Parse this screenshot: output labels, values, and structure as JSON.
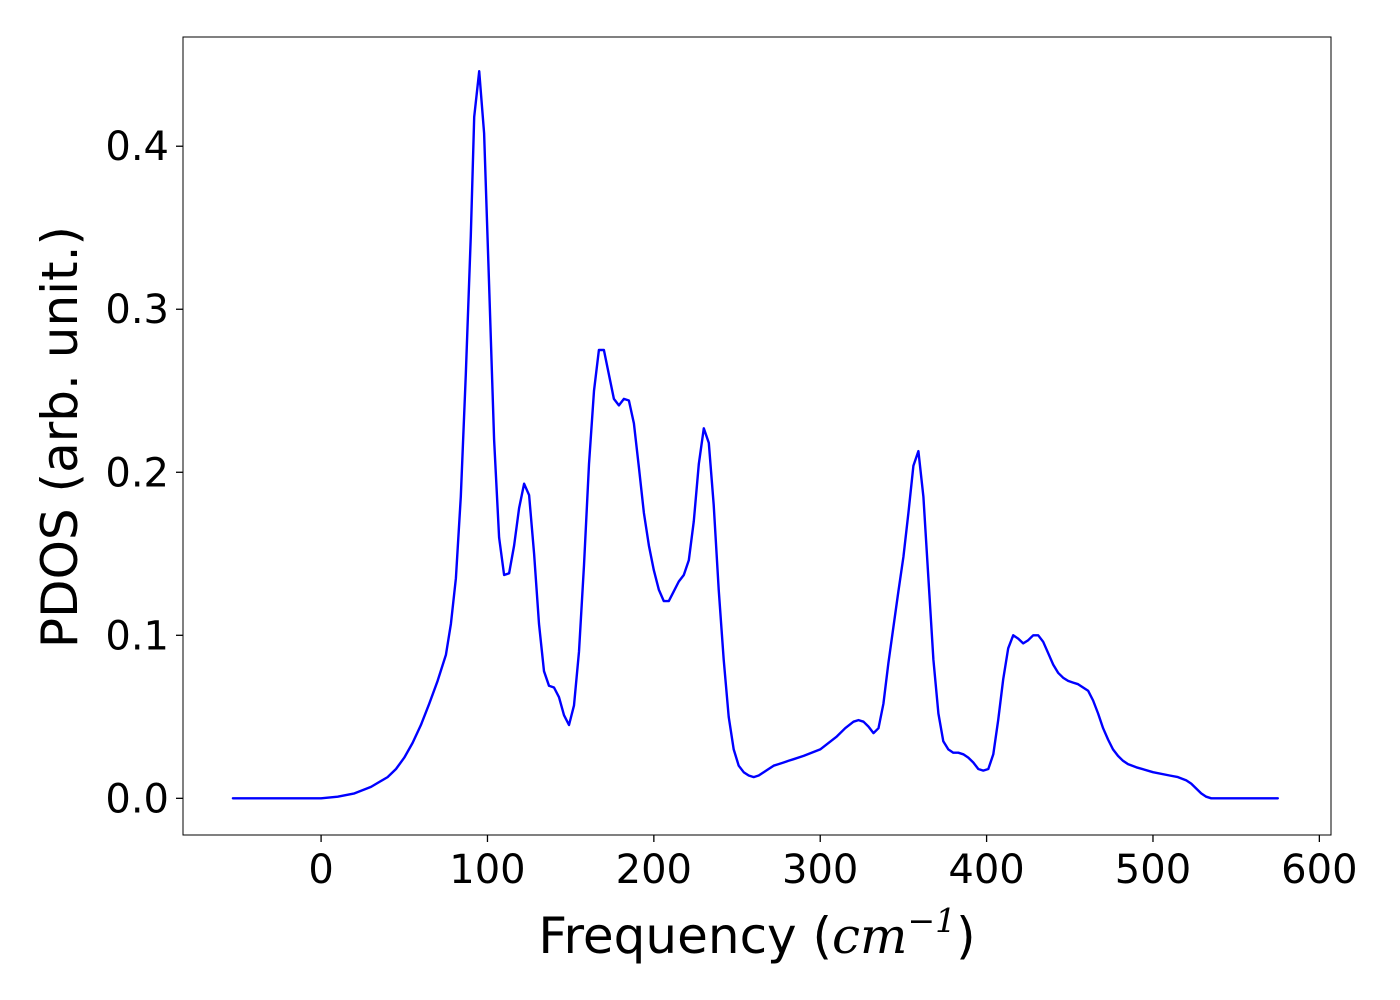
{
  "chart_data": {
    "type": "line",
    "title": "",
    "xlabel": "Frequency (",
    "xlabel_math": "cm",
    "xlabel_exp": "−1",
    "xlabel_close": ")",
    "ylabel": "PDOS (arb. unit.)",
    "xlim": [
      -83,
      607
    ],
    "ylim": [
      -0.0225,
      0.467
    ],
    "xticks": [
      0,
      100,
      200,
      300,
      400,
      500,
      600
    ],
    "xtick_labels": [
      "0",
      "100",
      "200",
      "300",
      "400",
      "500",
      "600"
    ],
    "yticks": [
      0.0,
      0.1,
      0.2,
      0.3,
      0.4
    ],
    "ytick_labels": [
      "0.0",
      "0.1",
      "0.2",
      "0.3",
      "0.4"
    ],
    "grid": false,
    "legend": "none",
    "series": [
      {
        "color": "#0000ff",
        "x": [
          -53,
          0,
          10,
          20,
          30,
          40,
          45,
          50,
          55,
          60,
          65,
          70,
          75,
          78,
          81,
          84,
          87,
          90,
          92,
          95,
          98,
          101,
          104,
          107,
          110,
          113,
          116,
          119,
          122,
          125,
          128,
          131,
          134,
          137,
          140,
          143,
          146,
          149,
          152,
          155,
          158,
          161,
          164,
          167,
          170,
          173,
          176,
          179,
          182,
          185,
          188,
          191,
          194,
          197,
          200,
          203,
          206,
          209,
          212,
          215,
          218,
          221,
          224,
          227,
          230,
          233,
          236,
          239,
          242,
          245,
          248,
          251,
          254,
          257,
          260,
          263,
          266,
          269,
          272,
          275,
          278,
          281,
          284,
          290,
          300,
          310,
          315,
          320,
          323,
          326,
          329,
          332,
          335,
          338,
          341,
          344,
          347,
          350,
          353,
          356,
          359,
          362,
          365,
          368,
          371,
          374,
          377,
          380,
          383,
          386,
          389,
          392,
          395,
          398,
          401,
          404,
          407,
          410,
          413,
          416,
          419,
          422,
          425,
          428,
          431,
          434,
          437,
          440,
          443,
          446,
          449,
          452,
          455,
          458,
          461,
          464,
          467,
          470,
          473,
          476,
          479,
          482,
          485,
          490,
          500,
          510,
          515,
          520,
          523,
          526,
          529,
          532,
          535,
          540,
          560,
          575
        ],
        "y": [
          0.0,
          0.0,
          0.001,
          0.003,
          0.007,
          0.013,
          0.018,
          0.025,
          0.034,
          0.045,
          0.058,
          0.072,
          0.088,
          0.107,
          0.135,
          0.185,
          0.26,
          0.345,
          0.418,
          0.446,
          0.408,
          0.315,
          0.22,
          0.16,
          0.137,
          0.138,
          0.155,
          0.178,
          0.193,
          0.186,
          0.15,
          0.107,
          0.078,
          0.069,
          0.068,
          0.062,
          0.051,
          0.045,
          0.057,
          0.09,
          0.143,
          0.205,
          0.25,
          0.275,
          0.275,
          0.26,
          0.245,
          0.241,
          0.245,
          0.244,
          0.23,
          0.203,
          0.175,
          0.155,
          0.14,
          0.128,
          0.121,
          0.121,
          0.127,
          0.133,
          0.137,
          0.146,
          0.17,
          0.205,
          0.227,
          0.218,
          0.18,
          0.128,
          0.085,
          0.05,
          0.03,
          0.02,
          0.016,
          0.014,
          0.013,
          0.014,
          0.016,
          0.018,
          0.02,
          0.021,
          0.022,
          0.023,
          0.024,
          0.026,
          0.03,
          0.038,
          0.043,
          0.047,
          0.048,
          0.047,
          0.044,
          0.04,
          0.043,
          0.058,
          0.083,
          0.105,
          0.127,
          0.148,
          0.175,
          0.204,
          0.213,
          0.185,
          0.135,
          0.085,
          0.052,
          0.035,
          0.03,
          0.028,
          0.028,
          0.027,
          0.025,
          0.022,
          0.018,
          0.017,
          0.018,
          0.027,
          0.048,
          0.073,
          0.092,
          0.1,
          0.098,
          0.095,
          0.097,
          0.1,
          0.1,
          0.096,
          0.089,
          0.082,
          0.077,
          0.074,
          0.072,
          0.071,
          0.07,
          0.068,
          0.066,
          0.06,
          0.052,
          0.043,
          0.036,
          0.03,
          0.026,
          0.023,
          0.021,
          0.019,
          0.016,
          0.014,
          0.013,
          0.011,
          0.009,
          0.006,
          0.003,
          0.001,
          0.0,
          0.0,
          0.0,
          0.0
        ]
      }
    ]
  }
}
